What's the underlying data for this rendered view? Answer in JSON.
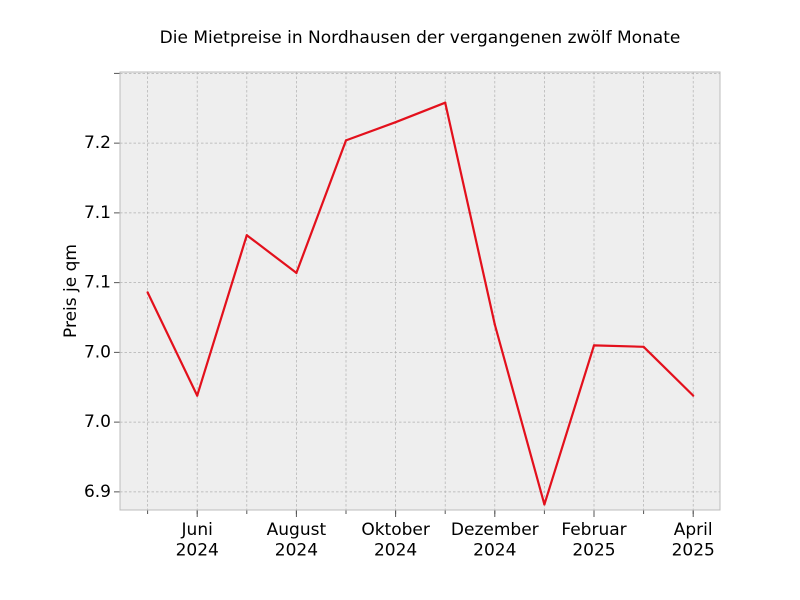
{
  "chart_data": {
    "type": "line",
    "title": "Die Mietpreise in Nordhausen der vergangenen zwölf Monate",
    "xlabel": "",
    "ylabel": "Preis je qm",
    "x": [
      "2024-05",
      "2024-06",
      "2024-07",
      "2024-08",
      "2024-09",
      "2024-10",
      "2024-11",
      "2024-12",
      "2025-01",
      "2025-02",
      "2025-03",
      "2025-04"
    ],
    "series": [
      {
        "values": [
          7.043,
          6.969,
          7.084,
          7.057,
          7.152,
          7.165,
          7.179,
          7.02,
          6.891,
          7.005,
          7.004,
          6.969
        ]
      }
    ],
    "ylim": [
      6.887,
      7.201
    ],
    "yticks": [
      6.9,
      6.95,
      7.0,
      7.05,
      7.1,
      7.15,
      7.2
    ],
    "yticklabels": [
      "6.9",
      "7.0",
      "7.0",
      "7.1",
      "7.1",
      "7.2",
      ""
    ],
    "xticks": [
      {
        "x": "2024-06",
        "label": [
          "Juni",
          "2024"
        ]
      },
      {
        "x": "2024-08",
        "label": [
          "August",
          "2024"
        ]
      },
      {
        "x": "2024-10",
        "label": [
          "Oktober",
          "2024"
        ]
      },
      {
        "x": "2024-12",
        "label": [
          "Dezember",
          "2024"
        ]
      },
      {
        "x": "2025-02",
        "label": [
          "Februar",
          "2025"
        ]
      },
      {
        "x": "2025-04",
        "label": [
          "April",
          "2025"
        ]
      }
    ],
    "grid": true,
    "colors": {
      "line": "#e3101c",
      "plot_background": "#eeeeee",
      "grid": "#b0b0b0"
    }
  }
}
